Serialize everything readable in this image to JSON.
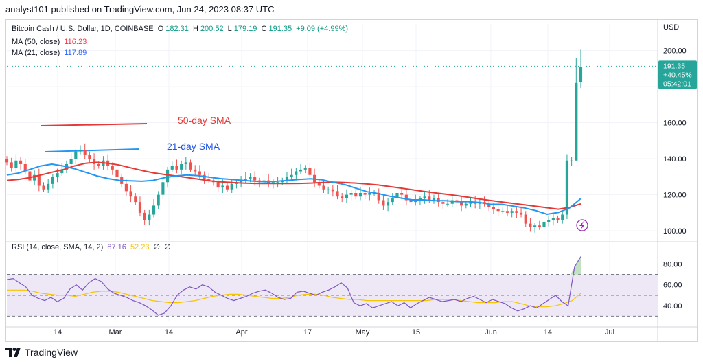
{
  "header": {
    "text": "analyst101 published on TradingView.com, Jun 24, 2023 08:37 UTC"
  },
  "legend": {
    "symbol": "Bitcoin Cash / U.S. Dollar, 1D, COINBASE",
    "o_label": "O",
    "o_val": "182.31",
    "h_label": "H",
    "h_val": "200.52",
    "l_label": "L",
    "l_val": "179.19",
    "c_label": "C",
    "c_val": "191.35",
    "change": "+9.09 (+4.99%)",
    "ma50_label": "MA (50, close)",
    "ma50_val": "116.23",
    "ma21_label": "MA (21, close)",
    "ma21_val": "117.89",
    "rsi_label": "RSI (14, close, SMA, 14, 2)",
    "rsi_val": "87.16",
    "rsi_sma_val": "52.23",
    "empty1": "∅",
    "empty2": "∅"
  },
  "annotations": {
    "sma50": "50-day SMA",
    "sma21": "21-day SMA"
  },
  "price_tag": {
    "price": "191.35",
    "change": "+40.45%",
    "countdown": "05:42:01"
  },
  "currency": "USD",
  "footer": {
    "brand": "TradingView"
  },
  "colors": {
    "up": "#26a69a",
    "down": "#ef5350",
    "ma50": "#e53935",
    "ma21": "#2196f3",
    "rsi": "#7e57c2",
    "rsi_sma": "#f7c500",
    "rsi_band": "#ede7f6"
  },
  "chart_data": [
    {
      "type": "candlestick",
      "title": "Bitcoin Cash / U.S. Dollar, 1D, COINBASE",
      "ylabel": "USD",
      "ylim": [
        97,
        209
      ],
      "y_ticks": [
        "100.00",
        "120.00",
        "140.00",
        "160.00",
        "180.00",
        "200.00"
      ],
      "x_ticks": [
        "14",
        "Mar",
        "14",
        "Apr",
        "17",
        "May",
        "15",
        "Jun",
        "14",
        "Jul"
      ],
      "close": [
        138,
        135,
        139,
        137,
        133,
        128,
        131,
        125,
        123,
        126,
        130,
        132,
        134,
        137,
        140,
        144,
        145,
        142,
        140,
        137,
        136,
        139,
        136,
        134,
        130,
        126,
        122,
        119,
        116,
        110,
        106,
        109,
        114,
        120,
        127,
        134,
        136,
        134,
        137,
        138,
        134,
        133,
        131,
        129,
        128,
        127,
        124,
        125,
        123,
        126,
        127,
        128,
        129,
        130,
        128,
        127,
        128,
        126,
        127,
        127,
        128,
        130,
        131,
        133,
        134,
        135,
        131,
        127,
        125,
        123,
        123,
        122,
        119,
        118,
        120,
        121,
        119,
        121,
        120,
        121,
        121,
        117,
        114,
        116,
        118,
        121,
        120,
        117,
        116,
        117,
        118,
        119,
        117,
        118,
        116,
        115,
        115,
        117,
        116,
        114,
        115,
        116,
        115,
        116,
        115,
        113,
        112,
        111,
        111,
        110,
        111,
        110,
        109,
        104,
        102,
        103,
        102,
        105,
        106,
        107,
        106,
        109,
        139,
        139,
        182,
        191
      ],
      "ma50": [
        128,
        128.5,
        129.5,
        131,
        132.5,
        134,
        136,
        137.5,
        138,
        137.5,
        136.5,
        135,
        133.5,
        132.2,
        131.3,
        130.5,
        129.6,
        128.7,
        127.8,
        127.2,
        126.8,
        126.5,
        126.3,
        126.2,
        126.2,
        126.2,
        126.3,
        126.5,
        126.8,
        127,
        126.8,
        126.5,
        126,
        125.4,
        124.6,
        123.7,
        122.8,
        121.9,
        121.1,
        120.3,
        119.5,
        118.6,
        117.7,
        116.8,
        116,
        115.2,
        114.4,
        113.6,
        112.8,
        112,
        113,
        115
      ],
      "ma21": [
        131,
        132,
        134,
        136,
        137,
        136,
        134.5,
        132.5,
        130.5,
        129,
        128,
        127.8,
        127.5,
        128,
        129.5,
        130.5,
        131,
        130.6,
        129.8,
        129,
        128.5,
        128,
        127.5,
        127.2,
        127.5,
        128,
        128.6,
        128.9,
        128.4,
        126.9,
        125.7,
        123.7,
        121.7,
        120.7,
        119.2,
        118.2,
        117.2,
        117.2,
        116.7,
        116.7,
        116.2,
        116.2,
        115.7,
        114.7,
        114.7,
        113.7,
        112.7,
        111.2,
        109.2,
        110.2,
        112.7,
        117.9
      ],
      "last_price": 191.35
    },
    {
      "type": "line",
      "title": "RSI (14, close, SMA, 14, 2)",
      "ylim": [
        25,
        92
      ],
      "y_ticks": [
        "40.00",
        "60.00",
        "80.00"
      ],
      "bands": [
        30,
        70
      ],
      "series": [
        {
          "name": "RSI",
          "values": [
            65,
            66,
            62,
            58,
            50,
            47,
            45,
            48,
            44,
            47,
            56,
            60,
            55,
            62,
            66,
            63,
            56,
            52,
            50,
            48,
            45,
            43,
            40,
            36,
            31,
            33,
            40,
            50,
            55,
            58,
            56,
            60,
            58,
            53,
            50,
            47,
            45,
            47,
            49,
            52,
            54,
            55,
            52,
            48,
            46,
            47,
            53,
            54,
            52,
            50,
            53,
            55,
            58,
            62,
            57,
            43,
            40,
            42,
            38,
            40,
            42,
            44,
            40,
            43,
            38,
            42,
            45,
            48,
            46,
            44,
            45,
            46,
            44,
            47,
            49,
            46,
            43,
            46,
            44,
            42,
            38,
            35,
            37,
            40,
            38,
            42,
            46,
            50,
            44,
            40,
            77,
            87
          ]
        },
        {
          "name": "SMA",
          "values": [
            55,
            55,
            55,
            54,
            52,
            51,
            50,
            50,
            49,
            51,
            53,
            54,
            54,
            53,
            51,
            49,
            47,
            45,
            44,
            43,
            43,
            44,
            45,
            47,
            49,
            50,
            51,
            51,
            50,
            49,
            48,
            47,
            47,
            48,
            50,
            51,
            51,
            50,
            48,
            47,
            46,
            46,
            45,
            45,
            45,
            45,
            45,
            45,
            45,
            45,
            46,
            46,
            46,
            45,
            44,
            43,
            43,
            43,
            44,
            44,
            42,
            40,
            39,
            39,
            40,
            42,
            45,
            52
          ]
        }
      ]
    }
  ]
}
